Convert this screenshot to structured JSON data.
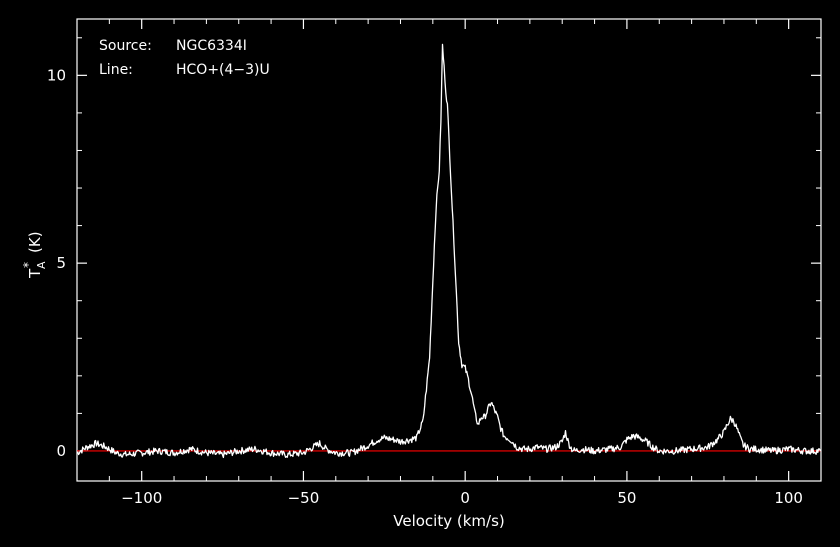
{
  "chart_data": {
    "type": "line",
    "info": {
      "source_label": "Source:",
      "source_value": "NGC6334I",
      "line_label": "Line:",
      "line_value": "HCO+(4−3)U"
    },
    "xlabel": "Velocity (km/s)",
    "ylabel_main": "T",
    "ylabel_sup": "*",
    "ylabel_sub": "A",
    "ylabel_unit": "(K)",
    "xlim": [
      -120,
      110
    ],
    "ylim": [
      -0.8,
      11.5
    ],
    "x_ticks": [
      {
        "v": -100,
        "label": "−100"
      },
      {
        "v": -50,
        "label": "−50"
      },
      {
        "v": 0,
        "label": "0"
      },
      {
        "v": 50,
        "label": "50"
      },
      {
        "v": 100,
        "label": "100"
      }
    ],
    "y_ticks": [
      {
        "v": 0,
        "label": "0"
      },
      {
        "v": 5,
        "label": "5"
      },
      {
        "v": 10,
        "label": "10"
      }
    ],
    "baseline": 0,
    "baseline_color": "#ff0000",
    "line_color": "#ffffff",
    "axis_color": "#ffffff",
    "series": [
      {
        "x": [
          -120,
          -117,
          -114,
          -111,
          -108,
          -105,
          -100,
          -95,
          -90,
          -85,
          -80,
          -75,
          -70,
          -65,
          -60,
          -55,
          -50,
          -47,
          -45,
          -43,
          -40,
          -35,
          -30,
          -27,
          -25,
          -22,
          -20,
          -17,
          -15,
          -13,
          -11,
          -10,
          -9,
          -8,
          -7.5,
          -7,
          -6.5,
          -6,
          -5.5,
          -5,
          -4,
          -3,
          -2,
          -1,
          0,
          1,
          2,
          3,
          4,
          5,
          6,
          7,
          8,
          9,
          10,
          11,
          12,
          13,
          14,
          16,
          18,
          20,
          22,
          25,
          28,
          30,
          31,
          32,
          33,
          34,
          36,
          40,
          45,
          48,
          50,
          52,
          54,
          56,
          58,
          60,
          65,
          70,
          75,
          78,
          80,
          81,
          82,
          83,
          84,
          85,
          86,
          88,
          90,
          95,
          100,
          105,
          110
        ],
        "y": [
          -0.05,
          0.1,
          0.2,
          0.1,
          -0.05,
          -0.1,
          -0.05,
          0.0,
          -0.05,
          0.05,
          -0.05,
          -0.1,
          0.0,
          0.05,
          -0.05,
          -0.1,
          -0.05,
          0.1,
          0.2,
          0.05,
          -0.05,
          -0.05,
          0.15,
          0.3,
          0.35,
          0.3,
          0.25,
          0.3,
          0.35,
          0.8,
          2.5,
          4.5,
          6.5,
          7.5,
          8.8,
          10.8,
          10.2,
          9.6,
          9.2,
          8.3,
          6.5,
          4.7,
          2.9,
          2.3,
          2.2,
          1.9,
          1.5,
          1.0,
          0.7,
          0.9,
          0.9,
          1.1,
          1.3,
          1.1,
          0.9,
          0.6,
          0.4,
          0.35,
          0.3,
          0.1,
          0.05,
          0.05,
          0.1,
          0.05,
          0.1,
          0.25,
          0.5,
          0.2,
          0.05,
          0.0,
          0.05,
          0.0,
          0.05,
          0.1,
          0.3,
          0.4,
          0.35,
          0.25,
          0.1,
          0.0,
          0.0,
          0.05,
          0.1,
          0.3,
          0.5,
          0.7,
          0.85,
          0.8,
          0.6,
          0.35,
          0.15,
          0.05,
          0.05,
          0.0,
          0.05,
          0.0,
          0.0
        ]
      }
    ]
  }
}
